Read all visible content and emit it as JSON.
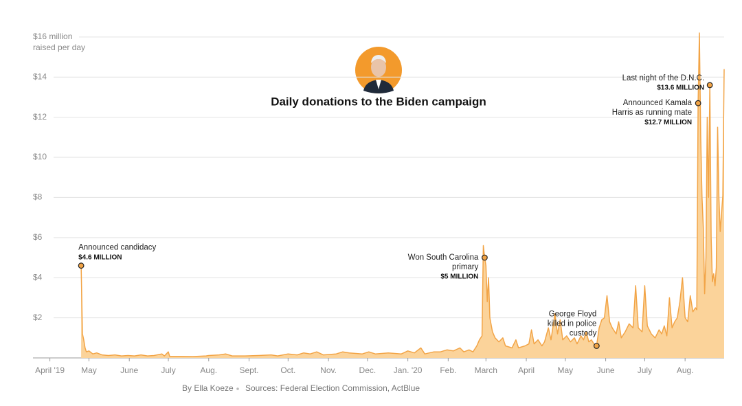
{
  "chart_data": {
    "type": "area",
    "title": "Daily donations to the Biden campaign",
    "y_unit_label": "raised per day",
    "credit": "By Ella Koeze",
    "source": "Sources: Federal Election Commission, ActBlue",
    "color": "#f2a446",
    "fill": "#fbd39a",
    "grid": true,
    "xlim": [
      -13,
      518
    ],
    "xticks": [
      {
        "value": 0,
        "label": "April '19"
      },
      {
        "value": 30,
        "label": "May"
      },
      {
        "value": 61,
        "label": "June"
      },
      {
        "value": 91,
        "label": "July"
      },
      {
        "value": 122,
        "label": "Aug."
      },
      {
        "value": 153,
        "label": "Sept."
      },
      {
        "value": 183,
        "label": "Oct."
      },
      {
        "value": 214,
        "label": "Nov."
      },
      {
        "value": 244,
        "label": "Dec."
      },
      {
        "value": 275,
        "label": "Jan. '20"
      },
      {
        "value": 306,
        "label": "Feb."
      },
      {
        "value": 335,
        "label": "March"
      },
      {
        "value": 366,
        "label": "April"
      },
      {
        "value": 396,
        "label": "May"
      },
      {
        "value": 427,
        "label": "June"
      },
      {
        "value": 457,
        "label": "July"
      },
      {
        "value": 488,
        "label": "Aug."
      }
    ],
    "ylim": [
      0,
      16.2
    ],
    "yticks": [
      0,
      {
        "value": 2,
        "label": "$2"
      },
      {
        "value": 4,
        "label": "$4"
      },
      {
        "value": 6,
        "label": "$6"
      },
      {
        "value": 8,
        "label": "$8"
      },
      {
        "value": 10,
        "label": "$10"
      },
      {
        "value": 12,
        "label": "$12"
      },
      {
        "value": 14,
        "label": "$14"
      },
      {
        "value": 16,
        "label": "$16 million"
      }
    ],
    "x": [
      24,
      25,
      26,
      27,
      28,
      30,
      33,
      36,
      40,
      45,
      50,
      55,
      60,
      65,
      70,
      75,
      80,
      86,
      88,
      91,
      92,
      100,
      110,
      120,
      122,
      130,
      135,
      140,
      150,
      160,
      170,
      175,
      183,
      190,
      195,
      200,
      205,
      210,
      220,
      225,
      230,
      240,
      245,
      250,
      260,
      270,
      275,
      280,
      285,
      288,
      295,
      300,
      305,
      310,
      315,
      318,
      322,
      325,
      328,
      330,
      332,
      333,
      334,
      335,
      336,
      337,
      338,
      340,
      342,
      345,
      348,
      350,
      355,
      358,
      360,
      365,
      368,
      370,
      372,
      375,
      378,
      380,
      383,
      385,
      388,
      390,
      392,
      394,
      397,
      400,
      403,
      405,
      408,
      410,
      412,
      414,
      416,
      418,
      420,
      422,
      424,
      426,
      428,
      430,
      432,
      435,
      437,
      439,
      442,
      445,
      448,
      450,
      452,
      455,
      457,
      459,
      462,
      465,
      468,
      470,
      472,
      474,
      476,
      478,
      480,
      482,
      484,
      486,
      488,
      490,
      492,
      494,
      496,
      497,
      498,
      499,
      500,
      501,
      502,
      503,
      504,
      505,
      506,
      507,
      508,
      509,
      510,
      511,
      512,
      513,
      514,
      515,
      516,
      517,
      518
    ],
    "values": [
      4.6,
      1.2,
      0.9,
      0.5,
      0.3,
      0.35,
      0.2,
      0.25,
      0.15,
      0.12,
      0.15,
      0.1,
      0.12,
      0.1,
      0.15,
      0.1,
      0.12,
      0.2,
      0.1,
      0.3,
      0.08,
      0.08,
      0.07,
      0.1,
      0.12,
      0.15,
      0.2,
      0.1,
      0.1,
      0.12,
      0.15,
      0.1,
      0.2,
      0.15,
      0.25,
      0.2,
      0.3,
      0.15,
      0.2,
      0.3,
      0.25,
      0.2,
      0.3,
      0.2,
      0.25,
      0.2,
      0.35,
      0.25,
      0.5,
      0.2,
      0.3,
      0.3,
      0.4,
      0.35,
      0.5,
      0.3,
      0.4,
      0.3,
      0.6,
      0.9,
      1.1,
      5.6,
      5.0,
      4.6,
      2.8,
      4.0,
      2.0,
      1.3,
      1.0,
      0.8,
      1.0,
      0.6,
      0.5,
      0.9,
      0.5,
      0.6,
      0.7,
      1.4,
      0.7,
      0.9,
      0.6,
      0.8,
      1.5,
      0.9,
      2.2,
      1.2,
      1.9,
      0.9,
      1.1,
      0.8,
      1.0,
      0.7,
      1.1,
      0.9,
      1.3,
      0.8,
      0.9,
      0.7,
      0.6,
      1.5,
      1.9,
      2.0,
      3.1,
      1.8,
      1.5,
      1.2,
      1.8,
      1.0,
      1.3,
      1.7,
      1.5,
      3.6,
      1.5,
      1.3,
      3.6,
      1.6,
      1.2,
      1.0,
      1.4,
      1.2,
      1.6,
      1.1,
      3.0,
      1.5,
      1.8,
      2.0,
      2.8,
      4.0,
      2.0,
      1.8,
      3.1,
      2.3,
      2.5,
      2.4,
      12.7,
      16.2,
      11.0,
      8.0,
      6.5,
      3.2,
      5.0,
      12.0,
      8.0,
      13.6,
      6.0,
      3.8,
      4.2,
      3.6,
      4.5,
      11.5,
      8.0,
      6.3,
      7.2,
      8.1,
      14.4
    ],
    "annotations": [
      {
        "lines": [
          "Announced candidacy"
        ],
        "value_label": "$4.6 MILLION",
        "x": 24,
        "y": 4.6
      },
      {
        "lines": [
          "Won South Carolina",
          "primary"
        ],
        "value_label": "$5 MILLION",
        "x": 334,
        "y": 5
      },
      {
        "lines": [
          "George Floyd",
          "killed in police",
          "custody"
        ],
        "x": 420,
        "y": 0.6
      },
      {
        "lines": [
          "Announced Kamala",
          "Harris as running mate"
        ],
        "value_label": "$12.7 MILLION",
        "x": 498,
        "y": 12.7
      },
      {
        "lines": [
          "Last night of the D.N.C."
        ],
        "value_label": "$13.6 MILLION",
        "x": 507,
        "y": 13.6
      }
    ]
  }
}
